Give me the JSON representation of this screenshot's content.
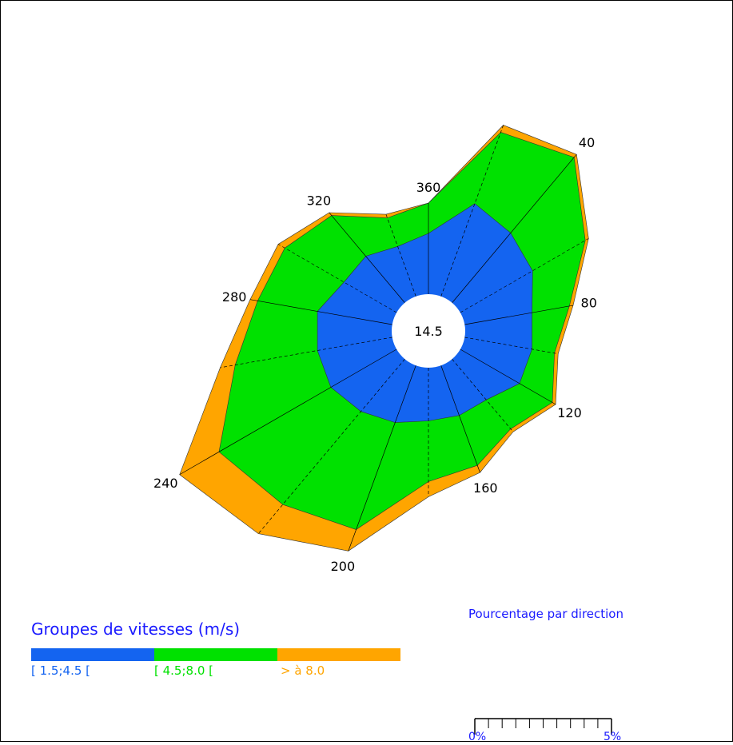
{
  "chart_data": {
    "type": "wind-rose",
    "center_label": "14.5",
    "direction_labels": [
      "40",
      "80",
      "120",
      "160",
      "200",
      "240",
      "280",
      "320",
      "360"
    ],
    "sector_step_deg": 20,
    "legend": {
      "title": "Groupes de vitesses (m/s)",
      "classes": [
        {
          "label": "[ 1.5;4.5 [",
          "color": "#1464f0"
        },
        {
          "label": "[ 4.5;8.0 [",
          "color": "#00e100"
        },
        {
          "label": "> à 8.0",
          "color": "#ffa500"
        }
      ]
    },
    "scale": {
      "title": "Pourcentage par direction",
      "min_label": "0%",
      "max_label": "5%",
      "max_percent": 5,
      "ticks": 10
    },
    "series": [
      {
        "name": "[ 1.5;4.5 [",
        "color": "#1464f0",
        "directions": [
          0,
          20,
          40,
          60,
          80,
          100,
          120,
          140,
          160,
          180,
          200,
          220,
          240,
          260,
          280,
          300,
          320,
          340
        ],
        "values": [
          0.8,
          1.3,
          1.2,
          1.1,
          0.9,
          0.9,
          0.9,
          0.7,
          0.7,
          0.7,
          0.8,
          0.9,
          1.0,
          1.0,
          1.0,
          0.8,
          0.8,
          0.7
        ]
      },
      {
        "name": "[ 4.5;8.0 [",
        "color": "#00e100",
        "directions": [
          0,
          20,
          40,
          60,
          80,
          100,
          120,
          140,
          160,
          180,
          200,
          220,
          240,
          260,
          280,
          300,
          320,
          340
        ],
        "values": [
          0.4,
          1.0,
          1.3,
          0.8,
          0.5,
          0.3,
          0.5,
          0.5,
          0.7,
          0.8,
          1.5,
          1.6,
          1.7,
          1.1,
          0.8,
          0.9,
          0.7,
          0.4
        ]
      },
      {
        "name": "> à 8.0",
        "color": "#ffa500",
        "directions": [
          0,
          20,
          40,
          60,
          80,
          100,
          120,
          140,
          160,
          180,
          200,
          220,
          240,
          260,
          280,
          300,
          320,
          340
        ],
        "values": [
          0.0,
          0.1,
          0.05,
          0.05,
          0.05,
          0.05,
          0.05,
          0.05,
          0.1,
          0.2,
          0.3,
          0.5,
          0.6,
          0.2,
          0.1,
          0.1,
          0.05,
          0.05
        ]
      }
    ]
  }
}
